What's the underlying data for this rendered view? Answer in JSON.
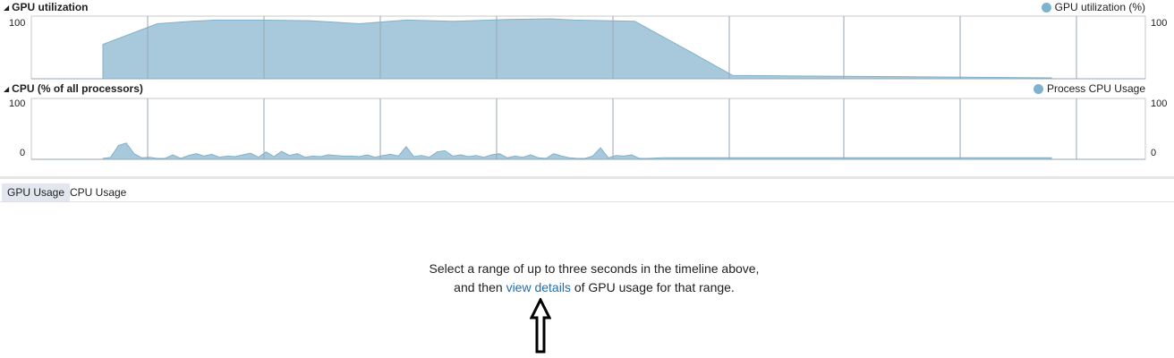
{
  "gpu_chart": {
    "title": "GPU utilization",
    "legend": "GPU utilization (%)",
    "y_max_label": "100",
    "fill_color": "#a8c9dc",
    "stroke_color": "#7fb2cc",
    "legend_color": "#7fb2cc"
  },
  "cpu_chart": {
    "title": "CPU (% of all processors)",
    "legend": "Process CPU Usage",
    "y_max_label": "100",
    "y_min_label": "0",
    "fill_color": "#a8c9dc",
    "stroke_color": "#7fb2cc",
    "legend_color": "#7fb2cc"
  },
  "chart_data": [
    {
      "type": "area",
      "title": "GPU utilization",
      "series": [
        {
          "name": "GPU utilization (%)",
          "x": [
            0,
            3.5,
            5.7,
            7.3,
            10,
            13.3,
            16.5,
            19.5,
            22.5,
            26,
            28.8,
            30.3,
            34.2,
            37.7,
            40.5,
            45.4,
            51,
            61
          ],
          "values": [
            55,
            89,
            93,
            95,
            95,
            94,
            89,
            95,
            93,
            96,
            97,
            95,
            93,
            44,
            4,
            3,
            2,
            0
          ]
        }
      ],
      "ylim": [
        0,
        100
      ]
    },
    {
      "type": "area",
      "title": "CPU (% of all processors)",
      "series": [
        {
          "name": "Process CPU Usage",
          "x": [
            0,
            0.5,
            1,
            1.5,
            2,
            2.5,
            3,
            3.5,
            4,
            4.5,
            5,
            5.5,
            6,
            6.5,
            7,
            7.5,
            8,
            8.5,
            9,
            9.5,
            10,
            10.5,
            11,
            11.5,
            12,
            12.5,
            13,
            13.5,
            14,
            14.5,
            15,
            15.5,
            16,
            16.5,
            17,
            17.5,
            18,
            18.5,
            19,
            19.5,
            20,
            20.5,
            21,
            21.5,
            22,
            22.5,
            23,
            23.5,
            24,
            24.5,
            25,
            25.5,
            26,
            26.5,
            27,
            27.5,
            28,
            28.5,
            29,
            29.5,
            30,
            30.5,
            31,
            31.5,
            32,
            32.5,
            33,
            33.5,
            34,
            34.5,
            35,
            36,
            37,
            38,
            39,
            40,
            41,
            42,
            43,
            44,
            45,
            46,
            47,
            48,
            49,
            50,
            51,
            52,
            53,
            54,
            55,
            56,
            57,
            58,
            59,
            60,
            61
          ],
          "values": [
            0,
            2,
            22,
            26,
            8,
            1,
            2,
            0,
            0,
            6,
            0,
            5,
            8,
            4,
            7,
            2,
            4,
            3,
            6,
            9,
            2,
            11,
            3,
            12,
            5,
            8,
            2,
            4,
            3,
            6,
            5,
            4,
            4,
            3,
            6,
            2,
            5,
            7,
            4,
            20,
            3,
            5,
            2,
            11,
            13,
            4,
            6,
            3,
            5,
            2,
            6,
            8,
            1,
            4,
            2,
            6,
            1,
            0,
            8,
            4,
            1,
            0,
            0,
            4,
            18,
            1,
            5,
            4,
            6,
            0,
            0,
            1,
            1,
            1,
            1,
            1,
            1,
            1,
            1,
            1,
            1,
            1,
            1,
            1,
            1,
            1,
            1,
            1,
            1,
            1,
            1,
            1,
            1,
            1,
            1,
            1,
            1
          ]
        }
      ],
      "ylim": [
        0,
        100
      ]
    }
  ],
  "tabs": [
    {
      "label": "GPU Usage",
      "active": true
    },
    {
      "label": "CPU Usage",
      "active": false
    }
  ],
  "message": {
    "line1": "Select a range of up to three seconds in the timeline above,",
    "line2_before": "and then ",
    "link": "view details",
    "line2_after": " of GPU usage for that range."
  }
}
